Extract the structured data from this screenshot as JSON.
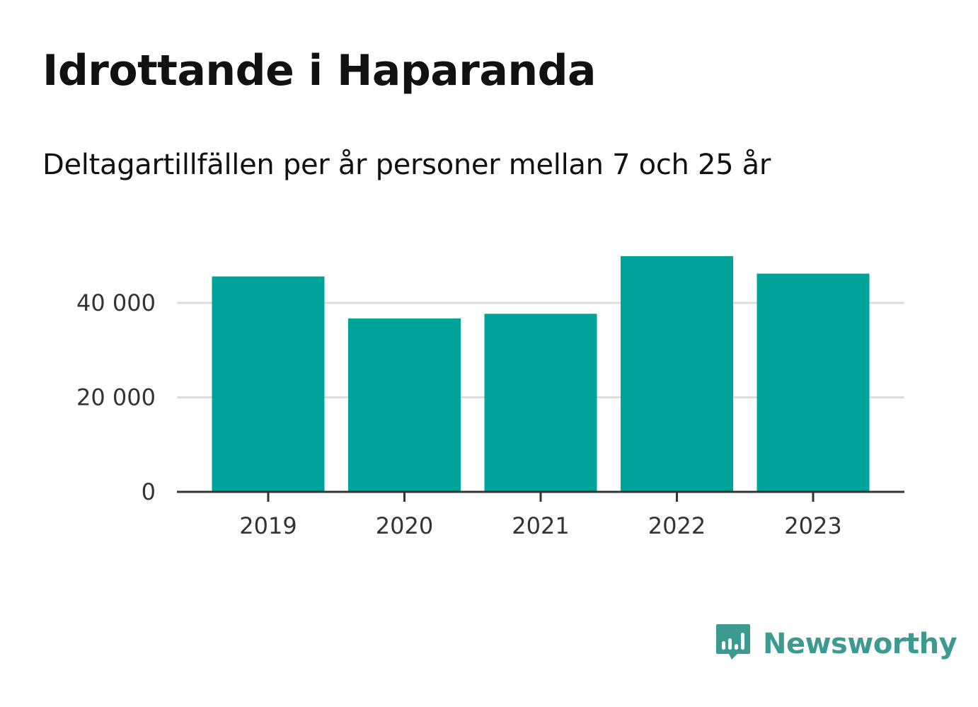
{
  "header": {
    "title": "Idrottande i Haparanda",
    "subtitle": "Deltagartillfällen per år personer mellan 7 och 25 år"
  },
  "brand": {
    "name": "Newsworthy",
    "icon": "newsworthy-logo-icon",
    "color": "#3c9a91"
  },
  "chart_data": {
    "type": "bar",
    "title": "Idrottande i Haparanda",
    "subtitle": "Deltagartillfällen per år personer mellan 7 och 25 år",
    "xlabel": "",
    "ylabel": "",
    "categories": [
      "2019",
      "2020",
      "2021",
      "2022",
      "2023"
    ],
    "values": [
      45600,
      36700,
      37700,
      49900,
      46200
    ],
    "ylim": [
      0,
      50000
    ],
    "yticks": [
      0,
      20000,
      40000
    ],
    "ytick_labels": [
      "0",
      "20 000",
      "40 000"
    ],
    "grid": true,
    "legend": "none",
    "bar_color": "#00a39a",
    "grid_color": "#dddddd",
    "axis_color": "#333333"
  }
}
